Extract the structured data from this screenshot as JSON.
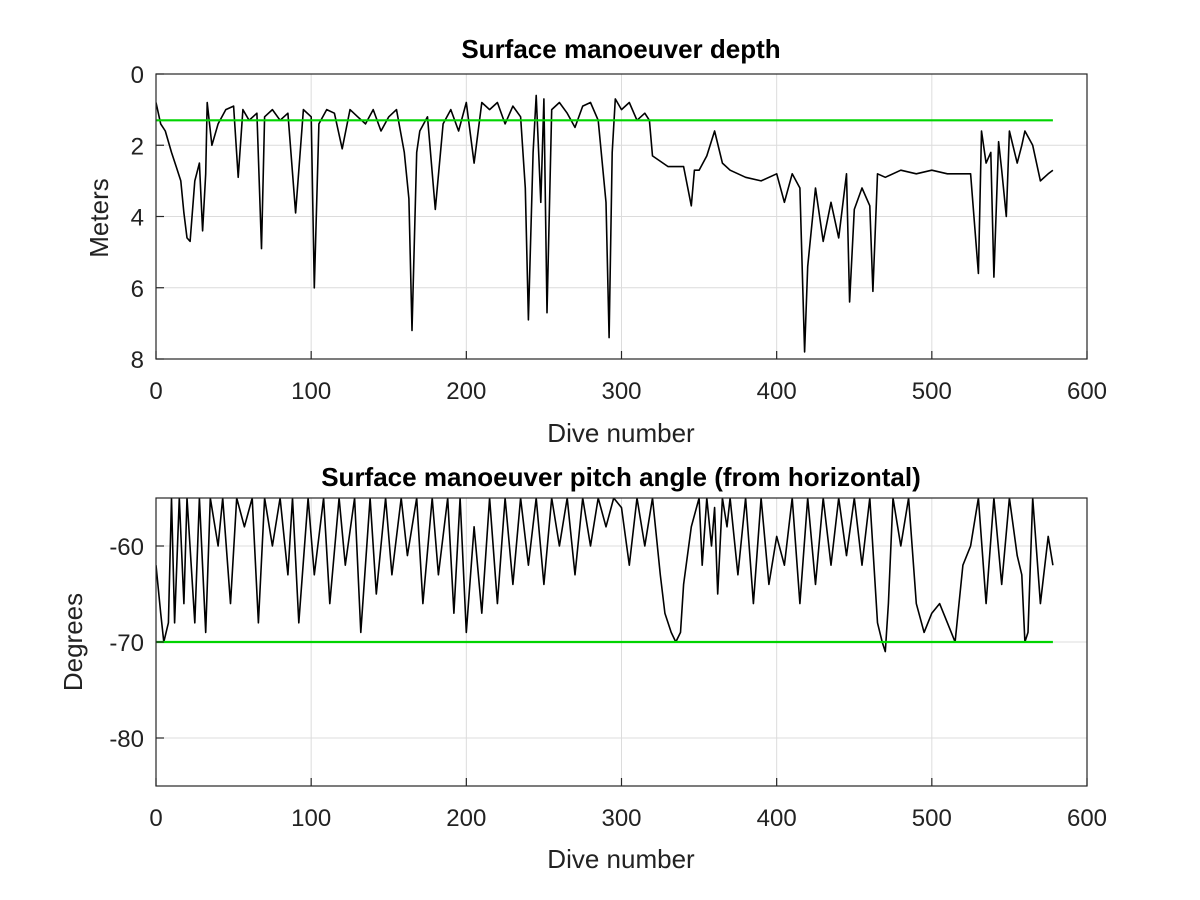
{
  "chart_data": [
    {
      "type": "line",
      "title": "Surface manoeuver depth",
      "xlabel": "Dive number",
      "ylabel": "Meters",
      "xlim": [
        0,
        600
      ],
      "ylim": [
        0,
        8
      ],
      "y_reversed": true,
      "grid": true,
      "xticks": [
        0,
        100,
        200,
        300,
        400,
        500,
        600
      ],
      "yticks": [
        0,
        2,
        4,
        6,
        8
      ],
      "series": [
        {
          "color": "#000000",
          "x": [
            0,
            3,
            6,
            10,
            13,
            16,
            18,
            20,
            22,
            25,
            28,
            30,
            32,
            33,
            36,
            40,
            45,
            50,
            53,
            56,
            60,
            65,
            68,
            70,
            75,
            80,
            85,
            90,
            95,
            100,
            102,
            105,
            110,
            115,
            120,
            125,
            130,
            135,
            140,
            145,
            150,
            155,
            160,
            163,
            165,
            168,
            170,
            175,
            180,
            185,
            190,
            195,
            200,
            205,
            210,
            215,
            220,
            225,
            230,
            235,
            238,
            240,
            243,
            245,
            248,
            250,
            252,
            255,
            260,
            265,
            270,
            275,
            280,
            285,
            290,
            292,
            294,
            296,
            300,
            305,
            310,
            315,
            318,
            320,
            330,
            340,
            345,
            347,
            350,
            355,
            360,
            365,
            370,
            380,
            390,
            400,
            405,
            410,
            415,
            418,
            420,
            425,
            430,
            435,
            440,
            445,
            447,
            450,
            455,
            460,
            462,
            465,
            470,
            480,
            490,
            500,
            510,
            520,
            525,
            530,
            532,
            535,
            538,
            540,
            543,
            545,
            548,
            550,
            555,
            558,
            560,
            565,
            570,
            575,
            578
          ],
          "y": [
            0.8,
            1.4,
            1.6,
            2.2,
            2.6,
            3.0,
            3.9,
            4.6,
            4.7,
            3.0,
            2.5,
            4.4,
            2.8,
            0.8,
            2.0,
            1.4,
            1.0,
            0.9,
            2.9,
            1.0,
            1.3,
            1.1,
            4.9,
            1.2,
            1.0,
            1.3,
            1.1,
            3.9,
            1.0,
            1.2,
            6.0,
            1.4,
            1.0,
            1.1,
            2.1,
            1.0,
            1.2,
            1.4,
            1.0,
            1.6,
            1.2,
            1.0,
            2.2,
            3.5,
            7.2,
            2.2,
            1.6,
            1.2,
            3.8,
            1.4,
            1.0,
            1.6,
            0.8,
            2.5,
            0.8,
            1.0,
            0.8,
            1.4,
            0.9,
            1.2,
            3.2,
            6.9,
            2.2,
            0.6,
            3.6,
            0.7,
            6.7,
            1.0,
            0.8,
            1.1,
            1.5,
            0.9,
            0.8,
            1.3,
            3.6,
            7.4,
            2.2,
            0.7,
            1.0,
            0.8,
            1.3,
            1.1,
            1.3,
            2.3,
            2.6,
            2.6,
            3.7,
            2.7,
            2.7,
            2.3,
            1.6,
            2.5,
            2.7,
            2.9,
            3.0,
            2.8,
            3.6,
            2.8,
            3.2,
            7.8,
            5.4,
            3.2,
            4.7,
            3.6,
            4.6,
            2.8,
            6.4,
            3.8,
            3.2,
            3.7,
            6.1,
            2.8,
            2.9,
            2.7,
            2.8,
            2.7,
            2.8,
            2.8,
            2.8,
            5.6,
            1.6,
            2.5,
            2.2,
            5.7,
            1.9,
            2.7,
            4.0,
            1.6,
            2.5,
            2.0,
            1.6,
            2.0,
            3.0,
            2.8,
            2.7
          ]
        },
        {
          "color": "#00d400",
          "x": [
            0,
            578
          ],
          "y": [
            1.3,
            1.3
          ]
        }
      ]
    },
    {
      "type": "line",
      "title": "Surface manoeuver pitch angle (from horizontal)",
      "xlabel": "Dive number",
      "ylabel": "Degrees",
      "xlim": [
        0,
        600
      ],
      "ylim": [
        -85,
        -55
      ],
      "grid": true,
      "xticks": [
        0,
        100,
        200,
        300,
        400,
        500,
        600
      ],
      "yticks": [
        -80,
        -70,
        -60
      ],
      "series": [
        {
          "color": "#000000",
          "x": [
            0,
            3,
            5,
            8,
            10,
            12,
            15,
            18,
            20,
            25,
            28,
            32,
            35,
            40,
            43,
            48,
            52,
            57,
            62,
            66,
            70,
            75,
            80,
            85,
            88,
            92,
            98,
            102,
            108,
            112,
            118,
            122,
            128,
            132,
            138,
            142,
            148,
            152,
            158,
            162,
            168,
            172,
            178,
            182,
            188,
            192,
            196,
            200,
            205,
            210,
            215,
            220,
            225,
            230,
            235,
            240,
            245,
            250,
            255,
            260,
            265,
            270,
            275,
            280,
            285,
            290,
            295,
            300,
            305,
            310,
            315,
            320,
            325,
            328,
            332,
            335,
            338,
            340,
            345,
            350,
            352,
            355,
            358,
            360,
            362,
            365,
            368,
            370,
            375,
            380,
            385,
            390,
            395,
            400,
            405,
            410,
            415,
            420,
            425,
            430,
            435,
            440,
            445,
            450,
            455,
            460,
            465,
            468,
            470,
            472,
            475,
            480,
            485,
            490,
            495,
            500,
            505,
            510,
            515,
            520,
            525,
            530,
            535,
            540,
            545,
            550,
            555,
            558,
            560,
            562,
            565,
            570,
            575,
            578
          ],
          "y": [
            -62,
            -67,
            -70,
            -68,
            -55,
            -68,
            -55,
            -66,
            -55,
            -68,
            -55,
            -69,
            -55,
            -60,
            -55,
            -66,
            -55,
            -58,
            -55,
            -68,
            -55,
            -60,
            -55,
            -63,
            -55,
            -68,
            -55,
            -63,
            -55,
            -66,
            -55,
            -62,
            -55,
            -69,
            -55,
            -65,
            -55,
            -63,
            -55,
            -61,
            -55,
            -66,
            -55,
            -63,
            -55,
            -67,
            -55,
            -69,
            -58,
            -67,
            -55,
            -66,
            -55,
            -64,
            -55,
            -62,
            -55,
            -64,
            -55,
            -60,
            -55,
            -63,
            -55,
            -60,
            -55,
            -58,
            -55,
            -56,
            -62,
            -55,
            -60,
            -55,
            -63,
            -67,
            -69,
            -70,
            -69,
            -64,
            -58,
            -55,
            -62,
            -55,
            -60,
            -56,
            -65,
            -55,
            -58,
            -55,
            -63,
            -55,
            -66,
            -55,
            -64,
            -59,
            -62,
            -55,
            -66,
            -55,
            -64,
            -55,
            -62,
            -55,
            -61,
            -55,
            -62,
            -55,
            -68,
            -70,
            -71,
            -66,
            -55,
            -60,
            -55,
            -66,
            -69,
            -67,
            -66,
            -68,
            -70,
            -62,
            -60,
            -55,
            -66,
            -55,
            -64,
            -55,
            -61,
            -63,
            -70,
            -69,
            -55,
            -66,
            -59,
            -62
          ]
        },
        {
          "color": "#00d400",
          "x": [
            0,
            578
          ],
          "y": [
            -70,
            -70
          ]
        }
      ]
    }
  ]
}
